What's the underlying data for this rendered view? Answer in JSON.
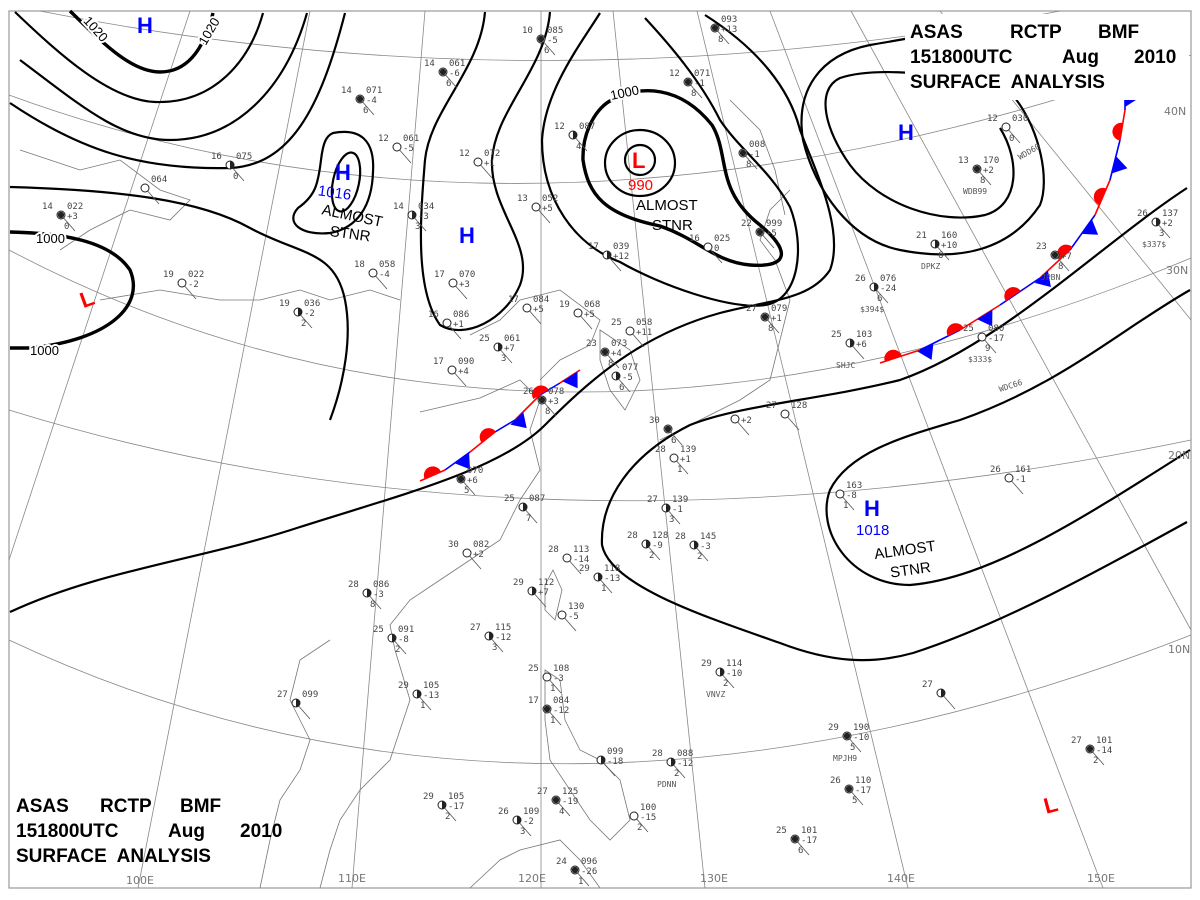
{
  "header": {
    "line1": [
      "ASAS",
      "RCTP",
      "BMF"
    ],
    "line2": [
      "151800UTC",
      "Aug",
      "2010"
    ],
    "line3": "SURFACE  ANALYSIS"
  },
  "grid_labels": {
    "longitudes": [
      "100E",
      "110E",
      "120E",
      "130E",
      "140E",
      "150E"
    ],
    "latitudes": [
      "40N",
      "30N",
      "20N",
      "10N"
    ]
  },
  "isobar_labels": [
    "1020",
    "1020",
    "1000",
    "1000",
    "1000"
  ],
  "pressure_systems": [
    {
      "type": "H",
      "color": "#0000ff"
    },
    {
      "type": "H",
      "color": "#0000ff",
      "value": "1016",
      "note": [
        "ALMOST",
        "STNR"
      ]
    },
    {
      "type": "H",
      "color": "#0000ff"
    },
    {
      "type": "H",
      "color": "#0000ff"
    },
    {
      "type": "H",
      "color": "#0000ff",
      "value": "1018",
      "note": [
        "ALMOST",
        "STNR"
      ]
    },
    {
      "type": "L",
      "color": "#ff0000"
    },
    {
      "type": "L",
      "color": "#ff0000",
      "value": "990",
      "note": [
        "ALMOST",
        "STNR"
      ]
    },
    {
      "type": "L",
      "color": "#ff0000"
    }
  ],
  "fronts": [
    {
      "type": "stationary",
      "warm_color": "#ff0000",
      "cold_color": "#0000ff"
    },
    {
      "type": "stationary",
      "warm_color": "#ff0000",
      "cold_color": "#0000ff"
    }
  ],
  "stations": [
    {
      "t": "16",
      "p": "075",
      "c": "",
      "s": "0"
    },
    {
      "t": "",
      "p": "064",
      "c": "",
      "s": ""
    },
    {
      "t": "14",
      "p": "022",
      "c": "+3",
      "s": "0"
    },
    {
      "t": "19",
      "p": "022",
      "c": "-2",
      "s": ""
    },
    {
      "t": "19",
      "p": "036",
      "c": "-2",
      "s": "2"
    },
    {
      "t": "14",
      "p": "071",
      "c": "-4",
      "s": "6"
    },
    {
      "t": "12",
      "p": "061",
      "c": "-5",
      "s": ""
    },
    {
      "t": "18",
      "p": "058",
      "c": "-4",
      "s": ""
    },
    {
      "t": "10",
      "p": "085",
      "c": "-5",
      "s": "6"
    },
    {
      "t": "14",
      "p": "061",
      "c": "-6",
      "s": "6"
    },
    {
      "t": "12",
      "p": "072",
      "c": "+1",
      "s": ""
    },
    {
      "t": "14",
      "p": "034",
      "c": "-3",
      "s": "3"
    },
    {
      "t": "13",
      "p": "052",
      "c": "+5",
      "s": ""
    },
    {
      "t": "17",
      "p": "070",
      "c": "+3",
      "s": ""
    },
    {
      "t": "16",
      "p": "086",
      "c": "+1",
      "s": ""
    },
    {
      "t": "17",
      "p": "084",
      "c": "+5",
      "s": ""
    },
    {
      "t": "19",
      "p": "068",
      "c": "+5",
      "s": ""
    },
    {
      "t": "12",
      "p": "087",
      "c": "",
      "s": "4"
    },
    {
      "t": "17",
      "p": "039",
      "c": "+12",
      "s": ""
    },
    {
      "t": "12",
      "p": "071",
      "c": "-1",
      "s": "8"
    },
    {
      "t": "",
      "p": "093",
      "c": "+13",
      "s": "8"
    },
    {
      "t": "",
      "p": "008",
      "c": "-1",
      "s": "8"
    },
    {
      "t": "22",
      "p": "999",
      "c": "+5",
      "s": ""
    },
    {
      "t": "16",
      "p": "025",
      "c": "0",
      "s": ""
    },
    {
      "t": "27",
      "p": "079",
      "c": "+1",
      "s": "8"
    },
    {
      "t": "25",
      "p": "061",
      "c": "+7",
      "s": "3"
    },
    {
      "t": "17",
      "p": "090",
      "c": "+4",
      "s": ""
    },
    {
      "t": "23",
      "p": "073",
      "c": "+4",
      "s": "8"
    },
    {
      "t": "25",
      "p": "058",
      "c": "+11",
      "s": ""
    },
    {
      "t": "",
      "p": "077",
      "c": "-5",
      "s": "6"
    },
    {
      "t": "26",
      "p": "078",
      "c": "+3",
      "s": "8"
    },
    {
      "t": "",
      "p": "070",
      "c": "+6",
      "s": "5"
    },
    {
      "t": "25",
      "p": "087",
      "c": "",
      "s": "7"
    },
    {
      "t": "30",
      "p": "082",
      "c": "+2",
      "s": ""
    },
    {
      "t": "28",
      "p": "113",
      "c": "-14",
      "s": ""
    },
    {
      "t": "29",
      "p": "118",
      "c": "-13",
      "s": "1"
    },
    {
      "t": "29",
      "p": "112",
      "c": "+7",
      "s": ""
    },
    {
      "t": "",
      "p": "130",
      "c": "-5",
      "s": ""
    },
    {
      "t": "30",
      "p": "",
      "c": "",
      "s": "6"
    },
    {
      "t": "28",
      "p": "139",
      "c": "+1",
      "s": "1"
    },
    {
      "t": "",
      "p": "",
      "c": "+2",
      "s": ""
    },
    {
      "t": "27",
      "p": "128",
      "c": "",
      "s": ""
    },
    {
      "t": "27",
      "p": "139",
      "c": "-1",
      "s": "3"
    },
    {
      "t": "28",
      "p": "128",
      "c": "-9",
      "s": "2"
    },
    {
      "t": "28",
      "p": "145",
      "c": "-3",
      "s": "2"
    },
    {
      "t": "",
      "p": "163",
      "c": "-8",
      "s": "1"
    },
    {
      "t": "26",
      "p": "161",
      "c": "-1",
      "s": ""
    },
    {
      "t": "27",
      "p": "",
      "c": "",
      "s": ""
    },
    {
      "t": "29",
      "p": "190",
      "c": "-10",
      "s": "5",
      "id": "MPJH9"
    },
    {
      "t": "27",
      "p": "101",
      "c": "-14",
      "s": "2"
    },
    {
      "t": "26",
      "p": "110",
      "c": "-17",
      "s": "5"
    },
    {
      "t": "25",
      "p": "101",
      "c": "-17",
      "s": "6"
    },
    {
      "t": "28",
      "p": "086",
      "c": "-3",
      "s": "8"
    },
    {
      "t": "25",
      "p": "091",
      "c": "-8",
      "s": "2"
    },
    {
      "t": "27",
      "p": "099",
      "c": "",
      "s": ""
    },
    {
      "t": "29",
      "p": "105",
      "c": "-13",
      "s": "1"
    },
    {
      "t": "27",
      "p": "115",
      "c": "-12",
      "s": "3"
    },
    {
      "t": "25",
      "p": "108",
      "c": "-3",
      "s": "1"
    },
    {
      "t": "17",
      "p": "084",
      "c": "-12",
      "s": "1"
    },
    {
      "t": "29",
      "p": "105",
      "c": "-17",
      "s": "2"
    },
    {
      "t": "26",
      "p": "109",
      "c": "-2",
      "s": "3"
    },
    {
      "t": "27",
      "p": "125",
      "c": "-19",
      "s": "4"
    },
    {
      "t": "",
      "p": "099",
      "c": "-18",
      "s": ""
    },
    {
      "t": "",
      "p": "100",
      "c": "-15",
      "s": "2"
    },
    {
      "t": "24",
      "p": "096",
      "c": "-26",
      "s": "1"
    },
    {
      "t": "28",
      "p": "088",
      "c": "-12",
      "s": "2",
      "id": "PDNN"
    },
    {
      "t": "29",
      "p": "114",
      "c": "-10",
      "s": "2",
      "id": "VNVZ"
    },
    {
      "t": "13",
      "p": "170",
      "c": "+2",
      "s": "8",
      "id": "WDB99"
    },
    {
      "t": "12",
      "p": "030",
      "c": "",
      "s": "0"
    },
    {
      "t": "21",
      "p": "160",
      "c": "+10",
      "s": "6",
      "id": "DPKZ"
    },
    {
      "t": "26",
      "p": "076",
      "c": "-24",
      "s": "6",
      "id": "$394$"
    },
    {
      "t": "25",
      "p": "103",
      "c": "+6",
      "s": "",
      "id": "SHJC"
    },
    {
      "t": "25",
      "p": "080",
      "c": "-17",
      "s": "9",
      "id": "$333$"
    },
    {
      "t": "23",
      "p": "",
      "c": "+7",
      "s": "8",
      "id": "JPBN"
    },
    {
      "t": "26",
      "p": "137",
      "c": "+2",
      "s": "3",
      "id": "$337$"
    }
  ],
  "ship_ids": [
    "WDD60",
    "WDC66"
  ]
}
